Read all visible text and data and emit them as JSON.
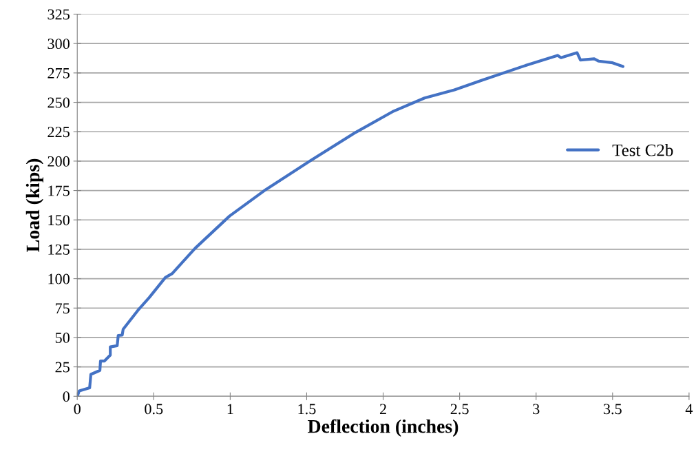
{
  "chart_data": {
    "type": "line",
    "xlabel": "Deflection (inches)",
    "ylabel": "Load (kips)",
    "series": [
      {
        "name": "Test C2b",
        "color": "#4472c4",
        "x": [
          0,
          0.013,
          0.081,
          0.089,
          0.148,
          0.152,
          0.178,
          0.216,
          0.216,
          0.261,
          0.268,
          0.294,
          0.3,
          0.396,
          0.471,
          0.576,
          0.621,
          0.688,
          0.771,
          0.996,
          1.221,
          1.521,
          1.821,
          2.061,
          2.271,
          2.466,
          2.646,
          2.946,
          3.141,
          3.163,
          3.268,
          3.29,
          3.38,
          3.41,
          3.5,
          3.568
        ],
        "values": [
          0,
          4.5,
          7.2,
          18.6,
          22,
          30,
          30,
          35,
          42,
          43,
          51.7,
          52,
          57,
          73,
          84,
          101,
          104.4,
          114,
          125.9,
          153.3,
          174.7,
          200.1,
          224.5,
          242,
          253.7,
          260.6,
          268.8,
          282,
          289.9,
          288,
          292.2,
          286,
          287,
          285,
          283.6,
          280.5
        ]
      }
    ],
    "xlim": [
      0,
      4
    ],
    "xticks": [
      0,
      0.5,
      1,
      1.5,
      2,
      2.5,
      3,
      3.5,
      4
    ],
    "ylim": [
      0,
      325
    ],
    "yticks": [
      0,
      25,
      50,
      75,
      100,
      125,
      150,
      175,
      200,
      225,
      250,
      275,
      300,
      325
    ],
    "grid": "y",
    "legend": "right",
    "marker": "none",
    "line_style": "solid"
  }
}
